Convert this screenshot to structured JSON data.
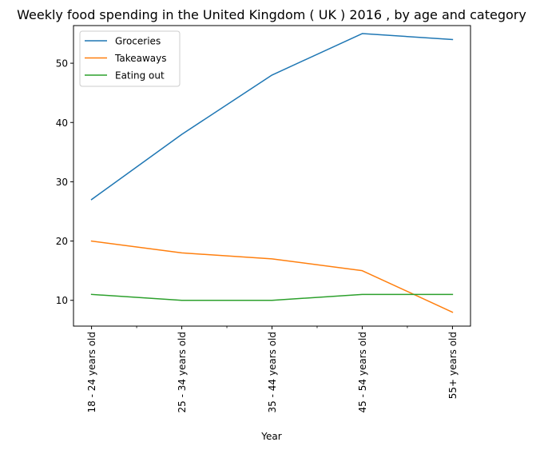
{
  "chart_data": {
    "type": "line",
    "title": "Weekly food spending in the United Kingdom ( UK ) 2016 , by age and category",
    "xlabel": "Year",
    "ylabel": "",
    "categories": [
      "18 - 24 years old",
      "25 - 34 years old",
      "35 - 44 years old",
      "45 - 54 years old",
      "55+ years old"
    ],
    "ylim": [
      5.65,
      56.35
    ],
    "yticks": [
      10,
      20,
      30,
      40,
      50
    ],
    "grid": false,
    "legend_position": "upper-left",
    "series": [
      {
        "name": "Groceries",
        "color": "#1f77b4",
        "values": [
          27,
          38,
          48,
          55,
          54
        ]
      },
      {
        "name": "Takeaways",
        "color": "#ff7f0e",
        "values": [
          20,
          18,
          17,
          15,
          8
        ]
      },
      {
        "name": "Eating out",
        "color": "#2ca02c",
        "values": [
          11,
          10,
          10,
          11,
          11
        ]
      }
    ]
  }
}
